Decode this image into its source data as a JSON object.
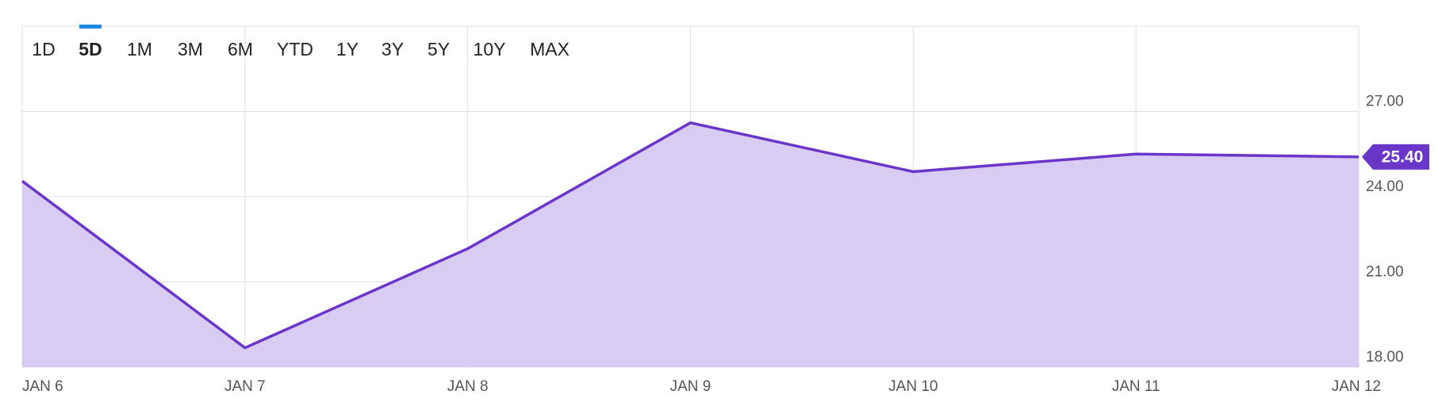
{
  "chart_data": {
    "type": "area",
    "range_selector": {
      "options": [
        "1D",
        "5D",
        "1M",
        "3M",
        "6M",
        "YTD",
        "1Y",
        "3Y",
        "5Y",
        "10Y",
        "MAX"
      ],
      "active": 1
    },
    "categories": [
      "JAN 6",
      "JAN 7",
      "JAN 8",
      "JAN 9",
      "JAN 10",
      "JAN 11",
      "JAN 12"
    ],
    "values": [
      24.55,
      18.68,
      22.17,
      26.6,
      24.88,
      25.5,
      25.4
    ],
    "value_labels": [
      null,
      null,
      null,
      null,
      null,
      null,
      "25.40"
    ],
    "color": "#6a35c9",
    "fill": "#d6c9f1",
    "ylim": [
      18,
      30
    ],
    "yticks": [
      {
        "value": 18,
        "label": "18.00"
      },
      {
        "value": 21,
        "label": "21.00"
      },
      {
        "value": 24,
        "label": "24.00"
      },
      {
        "value": 27,
        "label": "27.00"
      }
    ],
    "grid": true
  }
}
